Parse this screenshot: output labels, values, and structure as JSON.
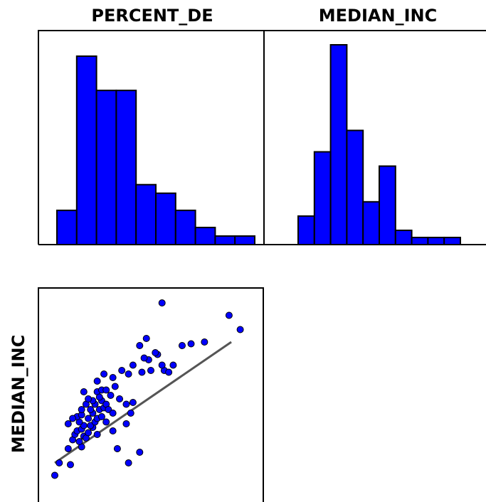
{
  "colors": {
    "bar_fill": "#0000ff",
    "bar_stroke": "#000000",
    "point_fill": "#0000ff",
    "fit_line": "#555555"
  },
  "titles": {
    "col1": "PERCENT_DE",
    "col2": "MEDIAN_INC",
    "row_label": "MEDIAN_INC"
  },
  "chart_data": [
    {
      "type": "bar",
      "title": "PERCENT_DE",
      "series": [
        {
          "values": [
            4,
            22,
            18,
            18,
            7,
            6,
            4,
            2,
            1,
            1
          ]
        }
      ],
      "ylim": [
        0,
        22
      ],
      "grid": false
    },
    {
      "type": "bar",
      "title": "MEDIAN_INC",
      "series": [
        {
          "values": [
            4,
            13,
            28,
            16,
            6,
            11,
            2,
            1,
            1,
            1
          ]
        }
      ],
      "ylim": [
        0,
        28
      ],
      "grid": false
    },
    {
      "type": "scatter",
      "ylabel": "MEDIAN_INC",
      "points": [
        [
          0.07,
          0.15
        ],
        [
          0.09,
          0.22
        ],
        [
          0.14,
          0.21
        ],
        [
          0.13,
          0.3
        ],
        [
          0.19,
          0.31
        ],
        [
          0.15,
          0.35
        ],
        [
          0.16,
          0.38
        ],
        [
          0.18,
          0.34
        ],
        [
          0.2,
          0.37
        ],
        [
          0.21,
          0.36
        ],
        [
          0.17,
          0.4
        ],
        [
          0.19,
          0.41
        ],
        [
          0.22,
          0.39
        ],
        [
          0.24,
          0.42
        ],
        [
          0.26,
          0.38
        ],
        [
          0.23,
          0.43
        ],
        [
          0.2,
          0.43
        ],
        [
          0.25,
          0.45
        ],
        [
          0.18,
          0.45
        ],
        [
          0.17,
          0.48
        ],
        [
          0.13,
          0.44
        ],
        [
          0.15,
          0.47
        ],
        [
          0.19,
          0.49
        ],
        [
          0.22,
          0.47
        ],
        [
          0.24,
          0.5
        ],
        [
          0.26,
          0.47
        ],
        [
          0.28,
          0.48
        ],
        [
          0.27,
          0.52
        ],
        [
          0.29,
          0.53
        ],
        [
          0.23,
          0.52
        ],
        [
          0.25,
          0.55
        ],
        [
          0.24,
          0.57
        ],
        [
          0.28,
          0.57
        ],
        [
          0.3,
          0.55
        ],
        [
          0.32,
          0.6
        ],
        [
          0.21,
          0.55
        ],
        [
          0.22,
          0.58
        ],
        [
          0.26,
          0.62
        ],
        [
          0.27,
          0.59
        ],
        [
          0.31,
          0.52
        ],
        [
          0.33,
          0.5
        ],
        [
          0.2,
          0.62
        ],
        [
          0.19,
          0.52
        ],
        [
          0.28,
          0.63
        ],
        [
          0.3,
          0.63
        ],
        [
          0.34,
          0.65
        ],
        [
          0.36,
          0.58
        ],
        [
          0.39,
          0.55
        ],
        [
          0.42,
          0.56
        ],
        [
          0.26,
          0.68
        ],
        [
          0.29,
          0.72
        ],
        [
          0.33,
          0.7
        ],
        [
          0.37,
          0.74
        ],
        [
          0.4,
          0.72
        ],
        [
          0.46,
          0.73
        ],
        [
          0.42,
          0.77
        ],
        [
          0.49,
          0.8
        ],
        [
          0.5,
          0.74
        ],
        [
          0.56,
          0.74
        ],
        [
          0.58,
          0.73
        ],
        [
          0.55,
          0.77
        ],
        [
          0.53,
          0.83
        ],
        [
          0.47,
          0.81
        ],
        [
          0.45,
          0.88
        ],
        [
          0.48,
          0.92
        ],
        [
          0.52,
          0.84
        ],
        [
          0.6,
          0.77
        ],
        [
          0.64,
          0.88
        ],
        [
          0.68,
          0.89
        ],
        [
          0.74,
          0.9
        ],
        [
          0.85,
          1.05
        ],
        [
          0.9,
          0.97
        ],
        [
          0.55,
          1.12
        ],
        [
          0.35,
          0.3
        ],
        [
          0.4,
          0.22
        ],
        [
          0.45,
          0.28
        ],
        [
          0.39,
          0.44
        ],
        [
          0.41,
          0.5
        ],
        [
          0.33,
          0.4
        ],
        [
          0.3,
          0.45
        ]
      ],
      "fit_line": [
        [
          0.07,
          0.22
        ],
        [
          0.86,
          0.9
        ]
      ],
      "xlim": [
        0,
        1
      ],
      "ylim": [
        0,
        1.2
      ]
    }
  ]
}
